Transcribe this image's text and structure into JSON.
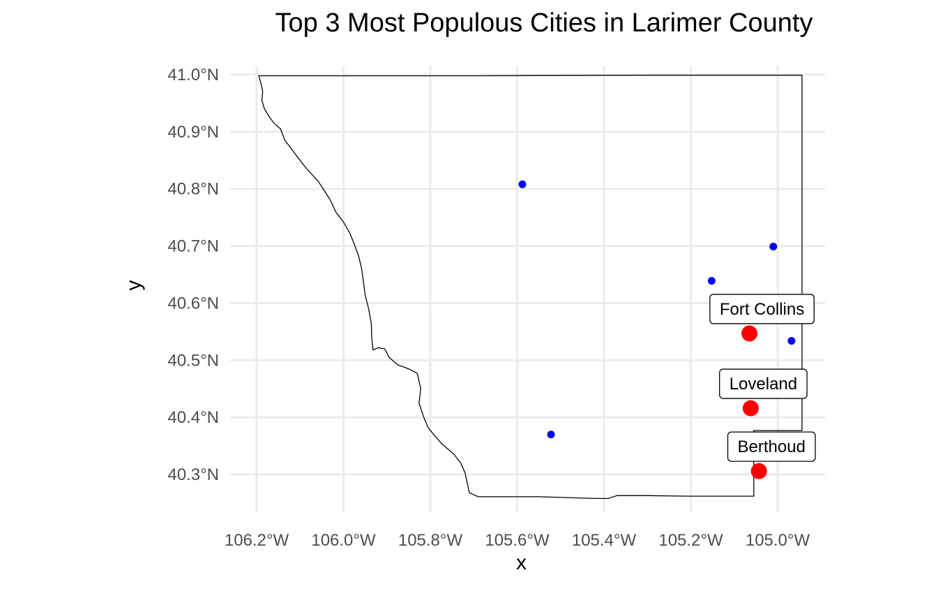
{
  "chart_data": {
    "type": "map",
    "title": "Top 3 Most Populous Cities in Larimer County",
    "xlabel": "x",
    "ylabel": "y",
    "xlim": [
      -106.2,
      -104.9
    ],
    "ylim": [
      40.25,
      41.0
    ],
    "x_ticks": [
      {
        "value": -106.2,
        "label": "106.2°W"
      },
      {
        "value": -106.0,
        "label": "106.0°W"
      },
      {
        "value": -105.8,
        "label": "105.8°W"
      },
      {
        "value": -105.6,
        "label": "105.6°W"
      },
      {
        "value": -105.4,
        "label": "105.4°W"
      },
      {
        "value": -105.2,
        "label": "105.2°W"
      },
      {
        "value": -105.0,
        "label": "105.0°W"
      }
    ],
    "y_ticks": [
      {
        "value": 41.0,
        "label": "41.0°N"
      },
      {
        "value": 40.9,
        "label": "40.9°N"
      },
      {
        "value": 40.8,
        "label": "40.8°N"
      },
      {
        "value": 40.7,
        "label": "40.7°N"
      },
      {
        "value": 40.6,
        "label": "40.6°N"
      },
      {
        "value": 40.5,
        "label": "40.5°N"
      },
      {
        "value": 40.4,
        "label": "40.4°N"
      },
      {
        "value": 40.3,
        "label": "40.3°N"
      }
    ],
    "grid": true,
    "colors": {
      "top_city": "#ff0000",
      "other_city": "#0000ff",
      "boundary": "#000000",
      "grid": "#ebebeb"
    },
    "top_cities": [
      {
        "name": "Fort Collins",
        "lon": -105.065,
        "lat": 40.547
      },
      {
        "name": "Loveland",
        "lon": -105.062,
        "lat": 40.416
      },
      {
        "name": "Berthoud",
        "lon": -105.043,
        "lat": 40.306
      }
    ],
    "other_cities": [
      {
        "lon": -105.588,
        "lat": 40.808
      },
      {
        "lon": -105.01,
        "lat": 40.699
      },
      {
        "lon": -105.152,
        "lat": 40.639
      },
      {
        "lon": -104.968,
        "lat": 40.534
      },
      {
        "lon": -105.522,
        "lat": 40.37
      }
    ],
    "boundary": [
      [
        -106.195,
        40.998
      ],
      [
        -106.19,
        40.985
      ],
      [
        -106.186,
        40.97
      ],
      [
        -106.188,
        40.955
      ],
      [
        -106.182,
        40.94
      ],
      [
        -106.17,
        40.925
      ],
      [
        -106.16,
        40.915
      ],
      [
        -106.145,
        40.905
      ],
      [
        -106.135,
        40.885
      ],
      [
        -106.12,
        40.87
      ],
      [
        -106.105,
        40.855
      ],
      [
        -106.09,
        40.84
      ],
      [
        -106.075,
        40.827
      ],
      [
        -106.06,
        40.815
      ],
      [
        -106.045,
        40.798
      ],
      [
        -106.03,
        40.78
      ],
      [
        -106.018,
        40.76
      ],
      [
        -106.0,
        40.742
      ],
      [
        -105.985,
        40.722
      ],
      [
        -105.975,
        40.703
      ],
      [
        -105.965,
        40.682
      ],
      [
        -105.958,
        40.66
      ],
      [
        -105.954,
        40.637
      ],
      [
        -105.95,
        40.614
      ],
      [
        -105.942,
        40.59
      ],
      [
        -105.936,
        40.565
      ],
      [
        -105.935,
        40.54
      ],
      [
        -105.932,
        40.518
      ],
      [
        -105.92,
        40.522
      ],
      [
        -105.905,
        40.52
      ],
      [
        -105.895,
        40.505
      ],
      [
        -105.875,
        40.492
      ],
      [
        -105.85,
        40.485
      ],
      [
        -105.83,
        40.477
      ],
      [
        -105.822,
        40.45
      ],
      [
        -105.826,
        40.425
      ],
      [
        -105.815,
        40.4
      ],
      [
        -105.805,
        40.382
      ],
      [
        -105.79,
        40.368
      ],
      [
        -105.775,
        40.355
      ],
      [
        -105.76,
        40.345
      ],
      [
        -105.745,
        40.335
      ],
      [
        -105.73,
        40.32
      ],
      [
        -105.72,
        40.303
      ],
      [
        -105.715,
        40.285
      ],
      [
        -105.71,
        40.268
      ],
      [
        -105.69,
        40.261
      ],
      [
        -105.55,
        40.261
      ],
      [
        -105.42,
        40.258
      ],
      [
        -105.39,
        40.258
      ],
      [
        -105.37,
        40.263
      ],
      [
        -105.3,
        40.263
      ],
      [
        -105.2,
        40.262
      ],
      [
        -105.055,
        40.262
      ],
      [
        -105.055,
        40.377
      ],
      [
        -104.944,
        40.377
      ],
      [
        -104.944,
        40.999
      ],
      [
        -105.3,
        40.999
      ],
      [
        -105.7,
        40.998
      ],
      [
        -106.195,
        40.998
      ]
    ]
  }
}
